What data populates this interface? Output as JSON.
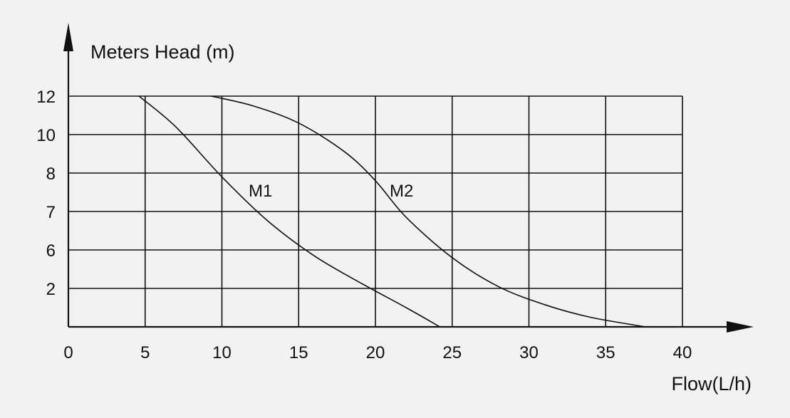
{
  "chart_data": {
    "type": "line",
    "title": "",
    "ylabel": "Meters Head (m)",
    "xlabel": "Flow(L/h)",
    "x_ticks": [
      "0",
      "5",
      "10",
      "15",
      "20",
      "25",
      "30",
      "35",
      "40"
    ],
    "y_ticks": [
      "2",
      "6",
      "7",
      "8",
      "10",
      "12"
    ],
    "xlim": [
      0,
      40
    ],
    "y_levels": 6,
    "grid": true,
    "legend": "inline labels",
    "series": [
      {
        "name": "M1",
        "color": "#111111",
        "x": [
          4.6,
          7,
          10,
          13,
          16,
          19,
          22,
          24.2
        ],
        "y_level": [
          6.0,
          5.2,
          3.9,
          2.75,
          1.85,
          1.15,
          0.5,
          0.0
        ]
      },
      {
        "name": "M2",
        "color": "#111111",
        "x": [
          9.3,
          12,
          15,
          18,
          20,
          22,
          25,
          28,
          31,
          34,
          37.6
        ],
        "y_level": [
          6.0,
          5.75,
          5.3,
          4.55,
          3.8,
          2.85,
          1.8,
          1.05,
          0.58,
          0.25,
          0.0
        ]
      }
    ]
  }
}
